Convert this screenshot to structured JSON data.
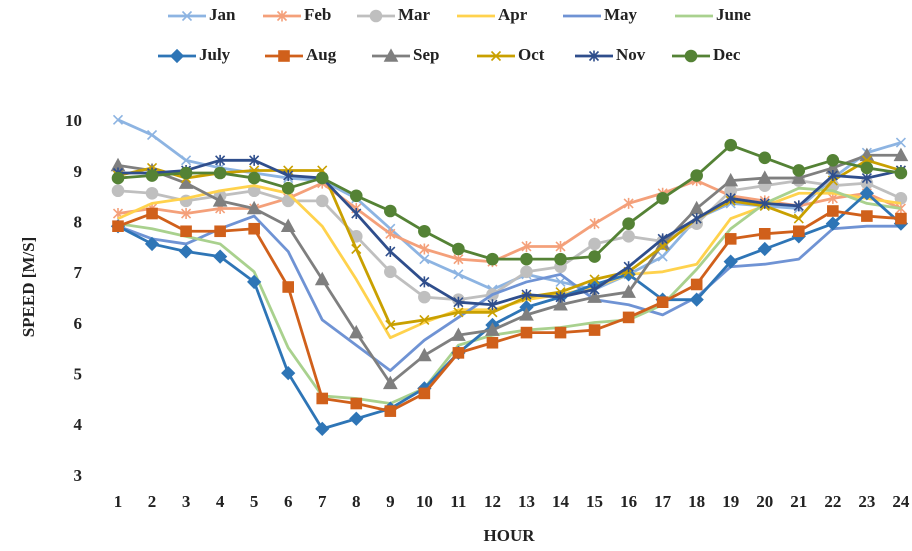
{
  "chart_data": {
    "type": "line",
    "x_label": "HOUR",
    "y_label": "SPEED [M/S]",
    "categories": [
      1,
      2,
      3,
      4,
      5,
      6,
      7,
      8,
      9,
      10,
      11,
      12,
      13,
      14,
      15,
      16,
      17,
      18,
      19,
      20,
      21,
      22,
      23,
      24
    ],
    "ylim": [
      3,
      10.5
    ],
    "yticks": [
      3,
      4,
      5,
      6,
      7,
      8,
      9,
      10
    ],
    "grid": false,
    "legend": "top",
    "series": [
      {
        "name": "Jan",
        "color": "#8DB4E2",
        "marker": "x",
        "values": [
          10.05,
          9.75,
          9.25,
          9.1,
          9.0,
          8.9,
          8.85,
          8.5,
          7.9,
          7.3,
          7.0,
          6.7,
          7.0,
          6.85,
          6.7,
          7.0,
          7.35,
          8.1,
          8.4,
          8.35,
          8.3,
          8.9,
          9.4,
          9.6
        ]
      },
      {
        "name": "Feb",
        "color": "#F4A07A",
        "marker": "asterisk",
        "values": [
          8.2,
          8.3,
          8.2,
          8.3,
          8.3,
          8.5,
          8.8,
          8.3,
          7.8,
          7.5,
          7.3,
          7.25,
          7.55,
          7.55,
          8.0,
          8.4,
          8.6,
          8.85,
          8.55,
          8.45,
          8.35,
          8.5,
          8.6,
          8.3
        ]
      },
      {
        "name": "Mar",
        "color": "#BFBFBF",
        "marker": "circle",
        "values": [
          8.65,
          8.6,
          8.45,
          8.55,
          8.65,
          8.45,
          8.45,
          7.75,
          7.05,
          6.55,
          6.5,
          6.6,
          7.05,
          7.15,
          7.6,
          7.75,
          7.65,
          8.0,
          8.65,
          8.75,
          8.85,
          8.75,
          8.8,
          8.5
        ]
      },
      {
        "name": "Apr",
        "color": "#FFD24D",
        "marker": "none",
        "values": [
          8.1,
          8.4,
          8.5,
          8.65,
          8.75,
          8.6,
          7.95,
          6.9,
          5.75,
          6.05,
          6.3,
          6.3,
          6.5,
          6.6,
          6.75,
          7.0,
          7.05,
          7.2,
          8.1,
          8.35,
          8.6,
          8.6,
          8.5,
          8.4
        ]
      },
      {
        "name": "May",
        "color": "#6F93D4",
        "marker": "none",
        "values": [
          7.95,
          7.7,
          7.6,
          7.9,
          8.15,
          7.45,
          6.1,
          5.6,
          5.1,
          5.7,
          6.15,
          6.6,
          6.85,
          7.0,
          6.5,
          6.4,
          6.2,
          6.55,
          7.15,
          7.2,
          7.3,
          7.9,
          7.95,
          7.95
        ]
      },
      {
        "name": "June",
        "color": "#A9D18E",
        "marker": "none",
        "values": [
          8.0,
          7.9,
          7.75,
          7.6,
          7.05,
          5.55,
          4.6,
          4.55,
          4.45,
          4.75,
          5.6,
          5.8,
          5.9,
          5.95,
          6.05,
          6.1,
          6.4,
          7.1,
          7.9,
          8.4,
          8.7,
          8.65,
          8.4,
          8.3
        ]
      },
      {
        "name": "July",
        "color": "#2E75B6",
        "marker": "diamond",
        "values": [
          7.95,
          7.6,
          7.45,
          7.35,
          6.85,
          5.05,
          3.95,
          4.15,
          4.35,
          4.75,
          5.45,
          6.0,
          6.35,
          6.55,
          6.8,
          7.0,
          6.5,
          6.5,
          7.25,
          7.5,
          7.75,
          8.0,
          8.6,
          8.0
        ]
      },
      {
        "name": "Aug",
        "color": "#D0601B",
        "marker": "square",
        "values": [
          7.95,
          8.2,
          7.85,
          7.85,
          7.9,
          6.75,
          4.55,
          4.45,
          4.3,
          4.65,
          5.45,
          5.65,
          5.85,
          5.85,
          5.9,
          6.15,
          6.45,
          6.8,
          7.7,
          7.8,
          7.85,
          8.25,
          8.15,
          8.1
        ]
      },
      {
        "name": "Sep",
        "color": "#7F7F7F",
        "marker": "triangle",
        "values": [
          9.15,
          9.05,
          8.8,
          8.45,
          8.3,
          7.95,
          6.9,
          5.85,
          4.85,
          5.4,
          5.8,
          5.9,
          6.2,
          6.4,
          6.55,
          6.65,
          7.6,
          8.3,
          8.85,
          8.9,
          8.9,
          9.1,
          9.35,
          9.35
        ]
      },
      {
        "name": "Oct",
        "color": "#C9A000",
        "marker": "x",
        "values": [
          8.95,
          9.1,
          8.9,
          9.0,
          9.05,
          9.05,
          9.05,
          7.5,
          6.0,
          6.1,
          6.25,
          6.25,
          6.55,
          6.65,
          6.9,
          7.05,
          7.55,
          8.1,
          8.45,
          8.35,
          8.1,
          8.85,
          9.25,
          9.05
        ]
      },
      {
        "name": "Nov",
        "color": "#2F4E8C",
        "marker": "asterisk",
        "values": [
          9.0,
          9.0,
          9.05,
          9.25,
          9.25,
          8.95,
          8.9,
          8.2,
          7.45,
          6.85,
          6.45,
          6.4,
          6.6,
          6.55,
          6.7,
          7.15,
          7.7,
          8.1,
          8.5,
          8.4,
          8.35,
          8.95,
          8.9,
          9.05
        ]
      },
      {
        "name": "Dec",
        "color": "#548235",
        "marker": "circle",
        "values": [
          8.9,
          8.95,
          9.0,
          9.0,
          8.9,
          8.7,
          8.9,
          8.55,
          8.25,
          7.85,
          7.5,
          7.3,
          7.3,
          7.3,
          7.35,
          8.0,
          8.5,
          8.95,
          9.55,
          9.3,
          9.05,
          9.25,
          9.1,
          9.0
        ]
      }
    ]
  }
}
